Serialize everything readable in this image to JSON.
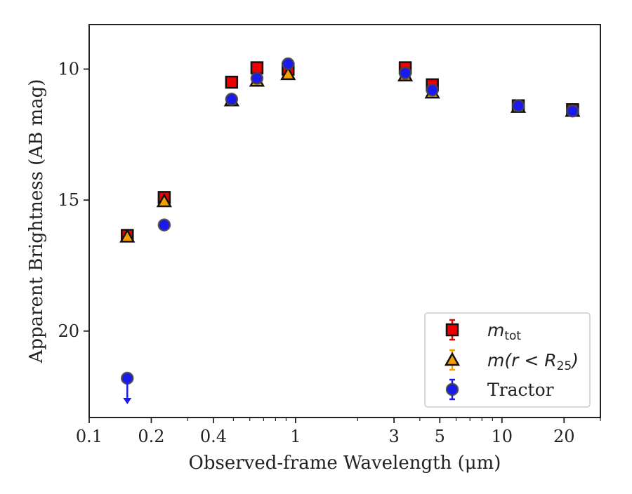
{
  "chart_data": {
    "type": "scatter",
    "xlabel": "Observed-frame Wavelength (μm)",
    "ylabel": "Apparent Brightness (AB mag)",
    "xscale": "log",
    "xlim": [
      0.1,
      30
    ],
    "ylim": [
      23.3,
      8.3
    ],
    "y_inverted": true,
    "x_ticks": [
      0.1,
      0.2,
      0.4,
      1,
      3,
      5,
      10,
      20
    ],
    "x_tick_labels": [
      "0.1",
      "0.2",
      "0.4",
      "1",
      "3",
      "5",
      "10",
      "20"
    ],
    "y_ticks": [
      10,
      15,
      20
    ],
    "y_tick_labels": [
      "10",
      "15",
      "20"
    ],
    "grid": false,
    "legend_position": "lower-right",
    "series": [
      {
        "key": "mtot",
        "legend_main": "m",
        "legend_sub": "tot",
        "marker": "square",
        "color": "#ee0000",
        "points": [
          {
            "x": 0.153,
            "y": 16.35
          },
          {
            "x": 0.231,
            "y": 14.9
          },
          {
            "x": 0.49,
            "y": 10.5
          },
          {
            "x": 0.65,
            "y": 9.95
          },
          {
            "x": 0.92,
            "y": 10.0
          },
          {
            "x": 3.4,
            "y": 9.95
          },
          {
            "x": 4.6,
            "y": 10.6
          },
          {
            "x": 12.0,
            "y": 11.4
          },
          {
            "x": 22.0,
            "y": 11.55
          }
        ]
      },
      {
        "key": "mr25",
        "legend_main": "m(r < R",
        "legend_sub": "25",
        "legend_tail": ")",
        "marker": "triangle",
        "color": "#f5a000",
        "points": [
          {
            "x": 0.153,
            "y": 16.4
          },
          {
            "x": 0.231,
            "y": 15.05
          },
          {
            "x": 0.49,
            "y": 11.2
          },
          {
            "x": 0.65,
            "y": 10.45
          },
          {
            "x": 0.92,
            "y": 10.2
          },
          {
            "x": 3.4,
            "y": 10.25
          },
          {
            "x": 4.6,
            "y": 10.9
          },
          {
            "x": 12.0,
            "y": 11.45
          },
          {
            "x": 22.0,
            "y": 11.6
          }
        ]
      },
      {
        "key": "tractor",
        "legend_main": "Tractor",
        "marker": "circle",
        "color": "#1a1aee",
        "points": [
          {
            "x": 0.153,
            "y": 21.8,
            "upper_limit": true
          },
          {
            "x": 0.231,
            "y": 15.95
          },
          {
            "x": 0.49,
            "y": 11.15
          },
          {
            "x": 0.65,
            "y": 10.35
          },
          {
            "x": 0.92,
            "y": 9.8
          },
          {
            "x": 3.4,
            "y": 10.15
          },
          {
            "x": 4.6,
            "y": 10.8
          },
          {
            "x": 12.0,
            "y": 11.4
          },
          {
            "x": 22.0,
            "y": 11.6
          }
        ]
      }
    ]
  }
}
